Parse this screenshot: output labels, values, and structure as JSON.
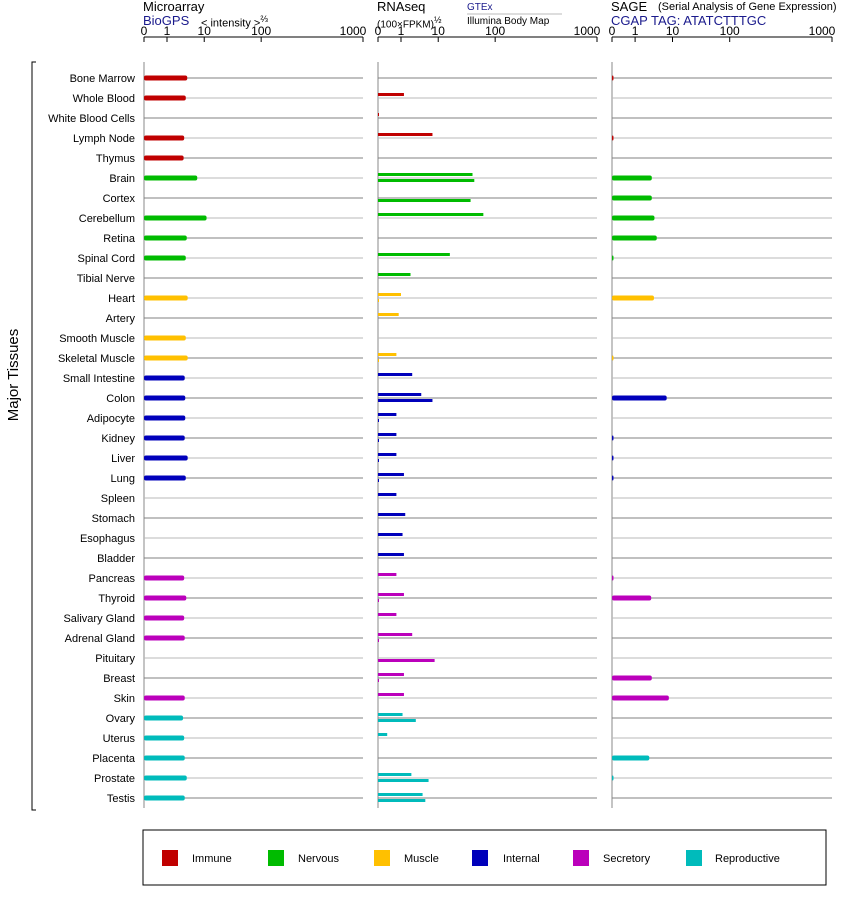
{
  "chart_data": {
    "type": "bar",
    "ylabel": "Major Tissues",
    "categories": [
      "Bone Marrow",
      "Whole Blood",
      "White Blood Cells",
      "Lymph Node",
      "Thymus",
      "Brain",
      "Cortex",
      "Cerebellum",
      "Retina",
      "Spinal Cord",
      "Tibial Nerve",
      "Heart",
      "Artery",
      "Smooth Muscle",
      "Skeletal Muscle",
      "Small Intestine",
      "Colon",
      "Adipocyte",
      "Kidney",
      "Liver",
      "Lung",
      "Spleen",
      "Stomach",
      "Esophagus",
      "Bladder",
      "Pancreas",
      "Thyroid",
      "Salivary Gland",
      "Adrenal Gland",
      "Pituitary",
      "Breast",
      "Skin",
      "Ovary",
      "Uterus",
      "Placenta",
      "Prostate",
      "Testis"
    ],
    "groups": [
      "Immune",
      "Immune",
      "Immune",
      "Immune",
      "Immune",
      "Nervous",
      "Nervous",
      "Nervous",
      "Nervous",
      "Nervous",
      "Nervous",
      "Muscle",
      "Muscle",
      "Muscle",
      "Muscle",
      "Internal",
      "Internal",
      "Internal",
      "Internal",
      "Internal",
      "Internal",
      "Internal",
      "Internal",
      "Internal",
      "Internal",
      "Secretory",
      "Secretory",
      "Secretory",
      "Secretory",
      "Secretory",
      "Secretory",
      "Secretory",
      "Reproductive",
      "Reproductive",
      "Reproductive",
      "Reproductive",
      "Reproductive"
    ],
    "group_colors": {
      "Immune": "#c00000",
      "Nervous": "#00bb00",
      "Muscle": "#ffc000",
      "Internal": "#0000bb",
      "Secretory": "#bb00bb",
      "Reproductive": "#00bbbb"
    },
    "x_ticks": [
      "0",
      "1",
      "10",
      "100",
      "1000"
    ],
    "panels": [
      {
        "title": "Microarray",
        "source": "BioGPS",
        "unit": "< intensity >",
        "unit_exp": "⅔",
        "values": [
          3.5,
          3.2,
          null,
          2.9,
          2.8,
          6.5,
          null,
          11,
          3.4,
          3.2,
          null,
          3.6,
          null,
          3.2,
          3.6,
          3.0,
          3.1,
          3.1,
          3.0,
          3.6,
          3.2,
          null,
          null,
          null,
          null,
          2.9,
          3.3,
          2.9,
          3.0,
          null,
          null,
          3.0,
          2.7,
          2.9,
          3.0,
          3.4,
          3.0
        ]
      },
      {
        "title": "RNAseq",
        "unit": "(100×FPKM)",
        "unit_exp": "½",
        "sources": [
          "GTEx",
          "Illumina Body Map"
        ],
        "gtex": [
          null,
          1.2,
          0.02,
          7,
          null,
          40,
          null,
          62,
          null,
          16,
          1.8,
          1.0,
          0.9,
          null,
          0.8,
          2.0,
          3.5,
          0.8,
          0.8,
          0.8,
          1.2,
          0.8,
          1.3,
          1.1,
          1.2,
          0.8,
          1.2,
          0.8,
          2.0,
          null,
          1.2,
          1.2,
          1.1,
          0.4,
          null,
          1.9,
          3.8
        ],
        "bodymap": [
          null,
          null,
          null,
          null,
          null,
          43,
          37,
          null,
          null,
          null,
          null,
          0.01,
          null,
          null,
          0.01,
          null,
          7,
          0.01,
          0.01,
          0.01,
          0.01,
          null,
          null,
          null,
          null,
          null,
          0.01,
          null,
          0.01,
          8,
          0.01,
          null,
          2.5,
          null,
          null,
          5.5,
          4.5
        ]
      },
      {
        "title": "SAGE",
        "subtitle": "(Serial Analysis of Gene Expression)",
        "source": "CGAP TAG: ATATCTTTGC",
        "values": [
          0.02,
          null,
          null,
          0.02,
          null,
          2.8,
          2.8,
          3.3,
          3.8,
          0.01,
          null,
          3.2,
          null,
          null,
          0.01,
          null,
          7,
          null,
          0.02,
          0.02,
          0.02,
          null,
          null,
          null,
          null,
          0.02,
          2.7,
          null,
          null,
          null,
          2.8,
          8,
          null,
          null,
          2.4,
          0.01,
          null
        ]
      }
    ],
    "legend": [
      "Immune",
      "Nervous",
      "Muscle",
      "Internal",
      "Secretory",
      "Reproductive"
    ]
  }
}
